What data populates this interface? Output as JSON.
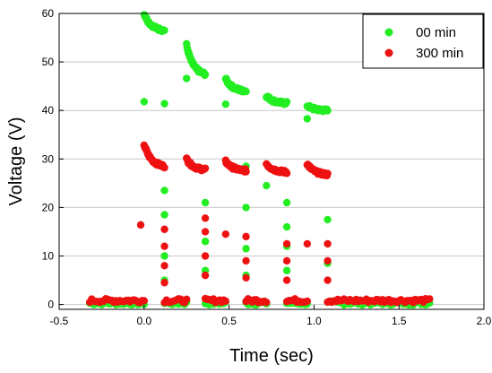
{
  "chart_data": {
    "type": "scatter",
    "title": "",
    "xlabel": "Time (sec)",
    "ylabel": "Voltage (V)",
    "xlim": [
      -0.5,
      2.0
    ],
    "ylim": [
      0,
      60
    ],
    "xticks": [
      "-0.5",
      "0.0",
      "0.5",
      "1.0",
      "1.5",
      "2.0"
    ],
    "yticks": [
      "0",
      "10",
      "20",
      "30",
      "40",
      "50",
      "60"
    ],
    "grid": "horizontal",
    "legend_position": "top-right",
    "series": [
      {
        "name": "00 min",
        "color": "#22ee22",
        "baseline_segments": [
          [
            -0.32,
            0.0
          ],
          [
            0.12,
            0.25
          ],
          [
            0.36,
            0.48
          ],
          [
            0.6,
            0.72
          ],
          [
            0.84,
            0.96
          ],
          [
            1.08,
            1.68
          ]
        ],
        "baseline_value": 0.3,
        "pulses": [
          {
            "x0": 0.0,
            "x1": 0.12,
            "y0": 60.0,
            "y1": 56.5
          },
          {
            "x0": 0.25,
            "x1": 0.36,
            "y0": 53.5,
            "y1": 47.5
          },
          {
            "x0": 0.48,
            "x1": 0.6,
            "y0": 46.5,
            "y1": 44.0
          },
          {
            "x0": 0.72,
            "x1": 0.84,
            "y0": 43.0,
            "y1": 41.5
          },
          {
            "x0": 0.96,
            "x1": 1.08,
            "y0": 41.0,
            "y1": 40.0
          }
        ],
        "extra_points": [
          {
            "x": 0.0,
            "y": 41.8
          },
          {
            "x": 0.12,
            "y": 41.4
          },
          {
            "x": 0.12,
            "y": 23.5
          },
          {
            "x": 0.12,
            "y": 18.5
          },
          {
            "x": 0.12,
            "y": 10.0
          },
          {
            "x": 0.12,
            "y": 5.0
          },
          {
            "x": 0.25,
            "y": 46.6
          },
          {
            "x": 0.36,
            "y": 21.0
          },
          {
            "x": 0.36,
            "y": 13.0
          },
          {
            "x": 0.36,
            "y": 7.0
          },
          {
            "x": 0.48,
            "y": 41.3
          },
          {
            "x": 0.6,
            "y": 28.5
          },
          {
            "x": 0.6,
            "y": 20.0
          },
          {
            "x": 0.6,
            "y": 11.5
          },
          {
            "x": 0.6,
            "y": 6.0
          },
          {
            "x": 0.72,
            "y": 24.5
          },
          {
            "x": 0.84,
            "y": 21.0
          },
          {
            "x": 0.84,
            "y": 16.0
          },
          {
            "x": 0.84,
            "y": 12.0
          },
          {
            "x": 0.84,
            "y": 7.0
          },
          {
            "x": 0.96,
            "y": 38.3
          },
          {
            "x": 1.08,
            "y": 17.5
          },
          {
            "x": 1.08,
            "y": 8.5
          }
        ]
      },
      {
        "name": "300 min",
        "color": "#ee1111",
        "baseline_segments": [
          [
            -0.32,
            0.0
          ],
          [
            0.12,
            0.25
          ],
          [
            0.36,
            0.48
          ],
          [
            0.6,
            0.72
          ],
          [
            0.84,
            0.96
          ],
          [
            1.08,
            1.68
          ]
        ],
        "baseline_value": 0.8,
        "pulses": [
          {
            "x0": 0.0,
            "x1": 0.12,
            "y0": 33.0,
            "y1": 28.5
          },
          {
            "x0": 0.25,
            "x1": 0.36,
            "y0": 30.0,
            "y1": 27.8
          },
          {
            "x0": 0.48,
            "x1": 0.6,
            "y0": 29.5,
            "y1": 27.6
          },
          {
            "x0": 0.72,
            "x1": 0.84,
            "y0": 29.0,
            "y1": 27.3
          },
          {
            "x0": 0.96,
            "x1": 1.08,
            "y0": 29.0,
            "y1": 26.8
          }
        ],
        "extra_points": [
          {
            "x": -0.02,
            "y": 16.4
          },
          {
            "x": 0.12,
            "y": 15.5
          },
          {
            "x": 0.12,
            "y": 12.0
          },
          {
            "x": 0.12,
            "y": 8.0
          },
          {
            "x": 0.12,
            "y": 4.5
          },
          {
            "x": 0.36,
            "y": 17.8
          },
          {
            "x": 0.36,
            "y": 15.0
          },
          {
            "x": 0.36,
            "y": 10.0
          },
          {
            "x": 0.36,
            "y": 6.0
          },
          {
            "x": 0.48,
            "y": 14.5
          },
          {
            "x": 0.6,
            "y": 14.0
          },
          {
            "x": 0.6,
            "y": 9.0
          },
          {
            "x": 0.6,
            "y": 5.5
          },
          {
            "x": 0.84,
            "y": 12.5
          },
          {
            "x": 0.84,
            "y": 9.0
          },
          {
            "x": 0.84,
            "y": 5.0
          },
          {
            "x": 0.96,
            "y": 12.5
          },
          {
            "x": 1.08,
            "y": 12.5
          },
          {
            "x": 1.08,
            "y": 9.0
          },
          {
            "x": 1.08,
            "y": 5.0
          }
        ]
      }
    ]
  }
}
